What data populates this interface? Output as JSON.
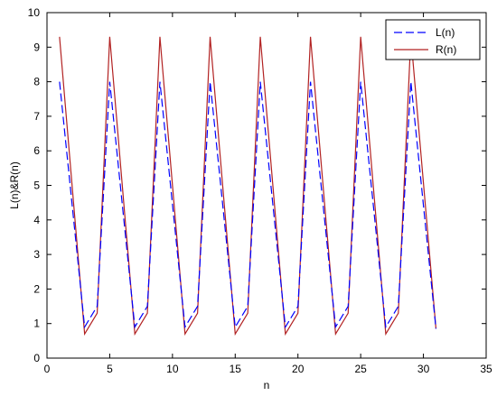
{
  "chart_data": {
    "type": "line",
    "title": "",
    "xlabel": "n",
    "ylabel": "L(n)&R(n)",
    "xlim": [
      0,
      35
    ],
    "ylim": [
      0,
      10
    ],
    "xticks": [
      0,
      5,
      10,
      15,
      20,
      25,
      30,
      35
    ],
    "yticks": [
      0,
      1,
      2,
      3,
      4,
      5,
      6,
      7,
      8,
      9,
      10
    ],
    "grid": false,
    "legend_position": "top-right",
    "series": [
      {
        "name": "L(n)",
        "color": "#0000ff",
        "style": "dashed",
        "x": [
          1,
          3,
          4,
          5,
          7,
          8,
          9,
          11,
          12,
          13,
          15,
          16,
          17,
          19,
          20,
          21,
          23,
          24,
          25,
          27,
          28,
          29,
          31
        ],
        "y": [
          8.0,
          0.9,
          1.5,
          8.0,
          0.9,
          1.5,
          8.0,
          0.9,
          1.5,
          8.0,
          0.9,
          1.5,
          8.0,
          0.9,
          1.5,
          8.0,
          0.9,
          1.5,
          8.0,
          0.9,
          1.5,
          8.0,
          0.85
        ]
      },
      {
        "name": "R(n)",
        "color": "#b22222",
        "style": "solid",
        "x": [
          1,
          3,
          4,
          5,
          7,
          8,
          9,
          11,
          12,
          13,
          15,
          16,
          17,
          19,
          20,
          21,
          23,
          24,
          25,
          27,
          28,
          29,
          31
        ],
        "y": [
          9.3,
          0.7,
          1.3,
          9.3,
          0.7,
          1.3,
          9.3,
          0.7,
          1.3,
          9.3,
          0.7,
          1.3,
          9.3,
          0.7,
          1.3,
          9.3,
          0.7,
          1.3,
          9.3,
          0.7,
          1.3,
          9.3,
          0.85
        ]
      }
    ]
  }
}
